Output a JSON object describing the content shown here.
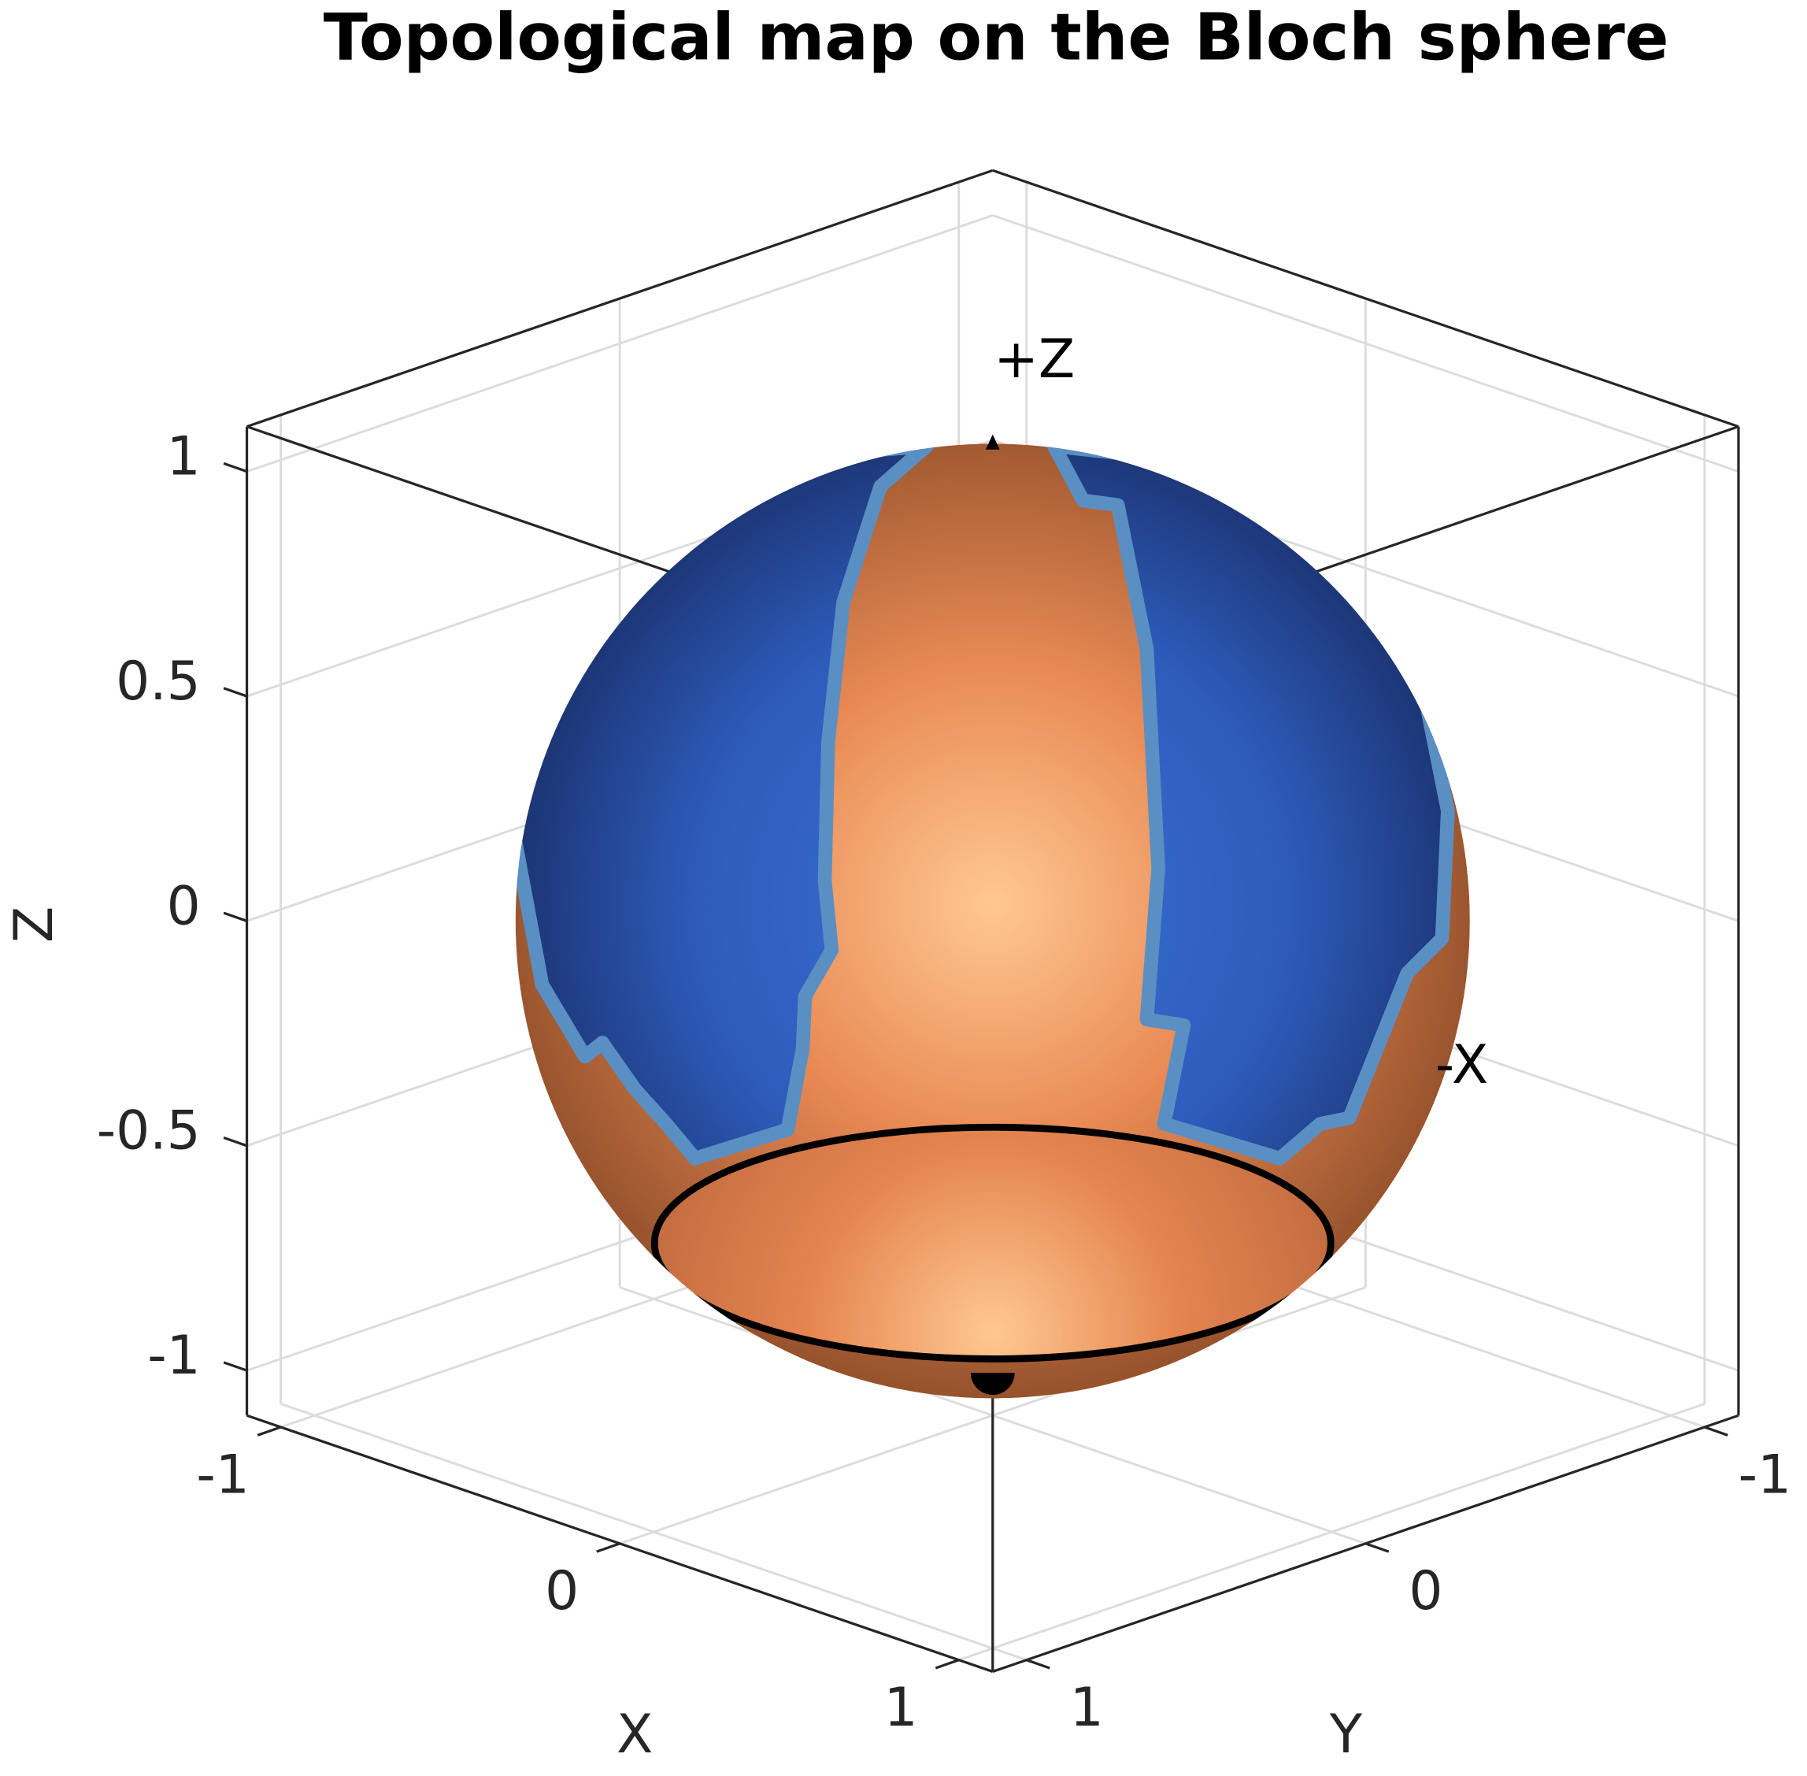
{
  "chart_data": {
    "type": "sphere3d",
    "title": "Topological map on the Bloch sphere",
    "xlabel": "X",
    "ylabel": "Y",
    "zlabel": "Z",
    "xlim": [
      -1.1,
      1.1
    ],
    "ylim": [
      -1.1,
      1.1
    ],
    "zlim": [
      -1.1,
      1.1
    ],
    "xticks": [
      -1,
      0,
      1
    ],
    "yticks": [
      -1,
      0,
      1
    ],
    "zticks": [
      -1,
      -0.5,
      0,
      0.5,
      1
    ],
    "grid": true,
    "annotations": [
      "+Z",
      "-X"
    ]
  }
}
